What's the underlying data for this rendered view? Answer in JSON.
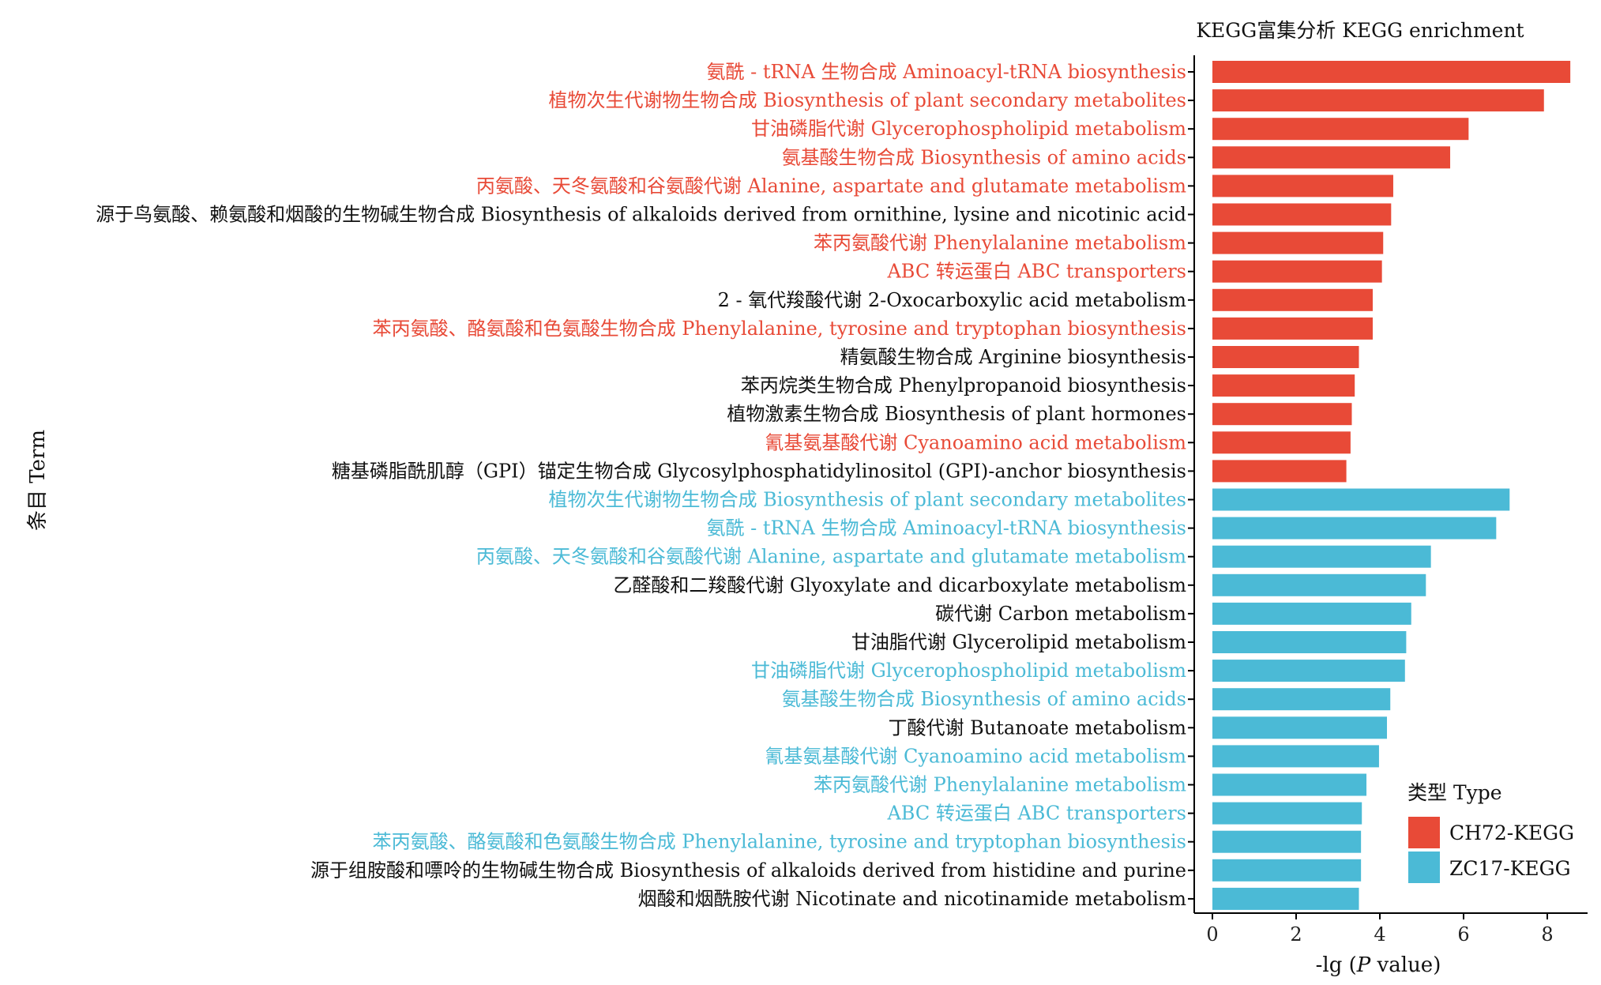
{
  "chart_data": {
    "type": "bar",
    "orientation": "horizontal",
    "title": "KEGG富集分析 KEGG enrichment",
    "xlabel_prefix": "-lg (",
    "xlabel_italic": "P",
    "xlabel_suffix": " value)",
    "ylabel": "条目 Term",
    "xlim": [
      0,
      8.7
    ],
    "xticks": [
      0,
      2,
      4,
      6,
      8
    ],
    "grid": false,
    "legend": {
      "title": "类型 Type",
      "placement": "bottom-right",
      "entries": [
        {
          "name": "CH72-KEGG",
          "color": "#E84A37"
        },
        {
          "name": "ZC17-KEGG",
          "color": "#4BBAD6"
        }
      ]
    },
    "label_colors": {
      "CH72-KEGG": "#E84A37",
      "ZC17-KEGG": "#4BBAD6",
      "plain": "#111111"
    },
    "bars": [
      {
        "term": "氨酰 - tRNA 生物合成 Aminoacyl-tRNA biosynthesis",
        "value": 8.55,
        "group": "CH72-KEGG",
        "label_color": "CH72-KEGG"
      },
      {
        "term": "植物次生代谢物生物合成 Biosynthesis of plant secondary metabolites",
        "value": 7.92,
        "group": "CH72-KEGG",
        "label_color": "CH72-KEGG"
      },
      {
        "term": "甘油磷脂代谢 Glycerophospholipid metabolism",
        "value": 6.12,
        "group": "CH72-KEGG",
        "label_color": "CH72-KEGG"
      },
      {
        "term": "氨基酸生物合成 Biosynthesis of amino acids",
        "value": 5.68,
        "group": "CH72-KEGG",
        "label_color": "CH72-KEGG"
      },
      {
        "term": "丙氨酸、天冬氨酸和谷氨酸代谢 Alanine, aspartate and glutamate metabolism",
        "value": 4.32,
        "group": "CH72-KEGG",
        "label_color": "CH72-KEGG"
      },
      {
        "term": "源于鸟氨酸、赖氨酸和烟酸的生物碱生物合成 Biosynthesis of alkaloids derived from ornithine, lysine and nicotinic acid",
        "value": 4.27,
        "group": "CH72-KEGG",
        "label_color": "plain"
      },
      {
        "term": "苯丙氨酸代谢 Phenylalanine metabolism",
        "value": 4.08,
        "group": "CH72-KEGG",
        "label_color": "CH72-KEGG"
      },
      {
        "term": "ABC 转运蛋白 ABC transporters",
        "value": 4.05,
        "group": "CH72-KEGG",
        "label_color": "CH72-KEGG"
      },
      {
        "term": "2 - 氧代羧酸代谢 2-Oxocarboxylic acid metabolism",
        "value": 3.83,
        "group": "CH72-KEGG",
        "label_color": "plain"
      },
      {
        "term": "苯丙氨酸、酪氨酸和色氨酸生物合成 Phenylalanine, tyrosine and tryptophan biosynthesis",
        "value": 3.83,
        "group": "CH72-KEGG",
        "label_color": "CH72-KEGG"
      },
      {
        "term": "精氨酸生物合成 Arginine biosynthesis",
        "value": 3.5,
        "group": "CH72-KEGG",
        "label_color": "plain"
      },
      {
        "term": "苯丙烷类生物合成 Phenylpropanoid biosynthesis",
        "value": 3.4,
        "group": "CH72-KEGG",
        "label_color": "plain"
      },
      {
        "term": "植物激素生物合成 Biosynthesis of plant hormones",
        "value": 3.33,
        "group": "CH72-KEGG",
        "label_color": "plain"
      },
      {
        "term": "氰基氨基酸代谢 Cyanoamino acid metabolism",
        "value": 3.3,
        "group": "CH72-KEGG",
        "label_color": "CH72-KEGG"
      },
      {
        "term": "糖基磷脂酰肌醇（GPI）锚定生物合成 Glycosylphosphatidylinositol (GPI)-anchor biosynthesis",
        "value": 3.2,
        "group": "CH72-KEGG",
        "label_color": "plain"
      },
      {
        "term": "植物次生代谢物生物合成 Biosynthesis of plant secondary metabolites",
        "value": 7.1,
        "group": "ZC17-KEGG",
        "label_color": "ZC17-KEGG"
      },
      {
        "term": "氨酰 - tRNA 生物合成 Aminoacyl-tRNA biosynthesis",
        "value": 6.78,
        "group": "ZC17-KEGG",
        "label_color": "ZC17-KEGG"
      },
      {
        "term": "丙氨酸、天冬氨酸和谷氨酸代谢 Alanine, aspartate and glutamate metabolism",
        "value": 5.22,
        "group": "ZC17-KEGG",
        "label_color": "ZC17-KEGG"
      },
      {
        "term": "乙醛酸和二羧酸代谢 Glyoxylate and dicarboxylate metabolism",
        "value": 5.1,
        "group": "ZC17-KEGG",
        "label_color": "plain"
      },
      {
        "term": "碳代谢 Carbon metabolism",
        "value": 4.75,
        "group": "ZC17-KEGG",
        "label_color": "plain"
      },
      {
        "term": "甘油脂代谢 Glycerolipid metabolism",
        "value": 4.63,
        "group": "ZC17-KEGG",
        "label_color": "plain"
      },
      {
        "term": "甘油磷脂代谢 Glycerophospholipid metabolism",
        "value": 4.6,
        "group": "ZC17-KEGG",
        "label_color": "ZC17-KEGG"
      },
      {
        "term": "氨基酸生物合成 Biosynthesis of amino acids",
        "value": 4.25,
        "group": "ZC17-KEGG",
        "label_color": "ZC17-KEGG"
      },
      {
        "term": "丁酸代谢 Butanoate metabolism",
        "value": 4.17,
        "group": "ZC17-KEGG",
        "label_color": "plain"
      },
      {
        "term": "氰基氨基酸代谢 Cyanoamino acid metabolism",
        "value": 3.98,
        "group": "ZC17-KEGG",
        "label_color": "ZC17-KEGG"
      },
      {
        "term": "苯丙氨酸代谢 Phenylalanine metabolism",
        "value": 3.68,
        "group": "ZC17-KEGG",
        "label_color": "ZC17-KEGG"
      },
      {
        "term": "ABC 转运蛋白 ABC transporters",
        "value": 3.57,
        "group": "ZC17-KEGG",
        "label_color": "ZC17-KEGG"
      },
      {
        "term": "苯丙氨酸、酪氨酸和色氨酸生物合成 Phenylalanine, tyrosine and tryptophan biosynthesis",
        "value": 3.55,
        "group": "ZC17-KEGG",
        "label_color": "ZC17-KEGG"
      },
      {
        "term": "源于组胺酸和嘌呤的生物碱生物合成 Biosynthesis of alkaloids derived from histidine and purine",
        "value": 3.55,
        "group": "ZC17-KEGG",
        "label_color": "plain"
      },
      {
        "term": "烟酸和烟酰胺代谢 Nicotinate and nicotinamide metabolism",
        "value": 3.5,
        "group": "ZC17-KEGG",
        "label_color": "plain"
      }
    ]
  }
}
